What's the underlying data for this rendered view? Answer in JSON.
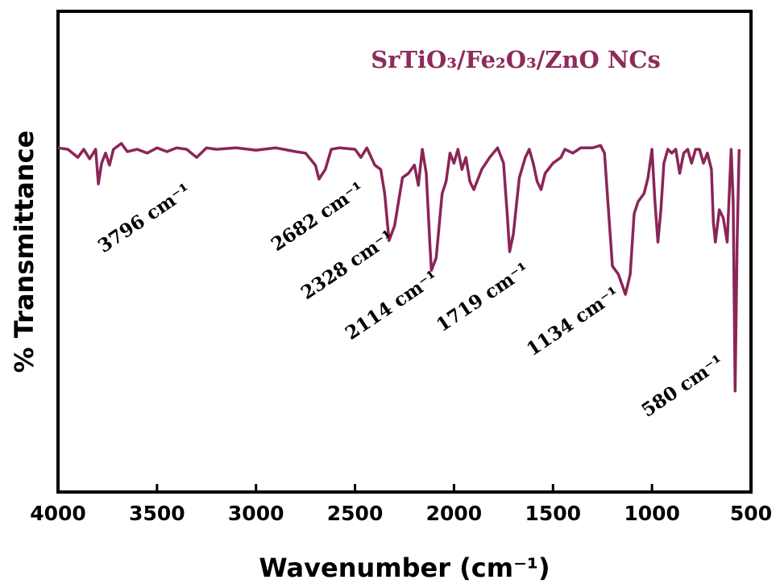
{
  "chart_data": {
    "type": "line",
    "title": "SrTiO₃/Fe₂O₃/ZnO NCs",
    "x_label": "Wavenumber (cm⁻¹)",
    "y_label": "% Transmittance",
    "xlim": [
      4000,
      500
    ],
    "xticks": [
      4000,
      3500,
      3000,
      2500,
      2000,
      1500,
      1000,
      500
    ],
    "ylim": [
      0,
      100
    ],
    "annotations": [
      "3796 cm⁻¹",
      "2682 cm⁻¹",
      "2328 cm⁻¹",
      "2114 cm⁻¹",
      "1719 cm⁻¹",
      "1134 cm⁻¹",
      "580 cm⁻¹"
    ],
    "series": [
      {
        "name": "SrTiO₃/Fe₂O₃/ZnO NCs",
        "color": "#8b2557",
        "x": [
          4000,
          3950,
          3900,
          3870,
          3840,
          3810,
          3796,
          3780,
          3760,
          3740,
          3720,
          3680,
          3650,
          3600,
          3550,
          3500,
          3450,
          3400,
          3350,
          3300,
          3250,
          3200,
          3100,
          3000,
          2900,
          2800,
          2750,
          2700,
          2682,
          2650,
          2620,
          2580,
          2500,
          2470,
          2440,
          2400,
          2370,
          2350,
          2328,
          2300,
          2260,
          2230,
          2200,
          2180,
          2160,
          2140,
          2120,
          2114,
          2090,
          2060,
          2040,
          2020,
          2000,
          1980,
          1960,
          1940,
          1920,
          1900,
          1860,
          1820,
          1780,
          1750,
          1730,
          1719,
          1700,
          1670,
          1640,
          1620,
          1600,
          1580,
          1560,
          1540,
          1500,
          1460,
          1440,
          1400,
          1360,
          1300,
          1260,
          1240,
          1220,
          1200,
          1170,
          1134,
          1110,
          1090,
          1070,
          1040,
          1020,
          1000,
          985,
          970,
          955,
          940,
          920,
          900,
          880,
          860,
          840,
          820,
          800,
          780,
          760,
          740,
          720,
          700,
          690,
          680,
          660,
          640,
          620,
          600,
          590,
          580,
          570,
          560
        ],
        "values": [
          71.6,
          71.3,
          69.6,
          71.3,
          69.3,
          71.3,
          64.1,
          68.4,
          70.5,
          68.0,
          71.3,
          72.5,
          70.8,
          71.3,
          70.5,
          71.6,
          70.8,
          71.6,
          71.3,
          69.6,
          71.6,
          71.3,
          71.6,
          71.1,
          71.6,
          70.8,
          70.5,
          68.0,
          65.1,
          67.1,
          71.3,
          71.6,
          71.3,
          69.6,
          71.6,
          68.0,
          67.1,
          62.1,
          52.3,
          55.4,
          65.4,
          66.3,
          68.0,
          63.8,
          71.3,
          66.3,
          50.3,
          46.1,
          48.7,
          62.1,
          64.6,
          70.5,
          68.4,
          71.3,
          67.1,
          69.6,
          64.6,
          62.9,
          67.1,
          69.6,
          71.6,
          68.4,
          57.0,
          50.0,
          53.7,
          65.4,
          69.6,
          71.3,
          68.4,
          64.6,
          62.9,
          66.3,
          68.4,
          69.6,
          71.3,
          70.5,
          71.6,
          71.6,
          72.1,
          70.5,
          58.7,
          47.0,
          45.3,
          41.1,
          45.3,
          57.9,
          60.4,
          62.1,
          65.4,
          71.3,
          60.4,
          52.0,
          58.7,
          68.4,
          71.3,
          70.5,
          71.3,
          66.3,
          70.5,
          71.3,
          68.4,
          71.3,
          71.3,
          68.4,
          70.5,
          67.1,
          56.2,
          52.0,
          58.7,
          57.0,
          52.0,
          71.3,
          60.4,
          21.0,
          52.0,
          71.3
        ]
      }
    ]
  }
}
